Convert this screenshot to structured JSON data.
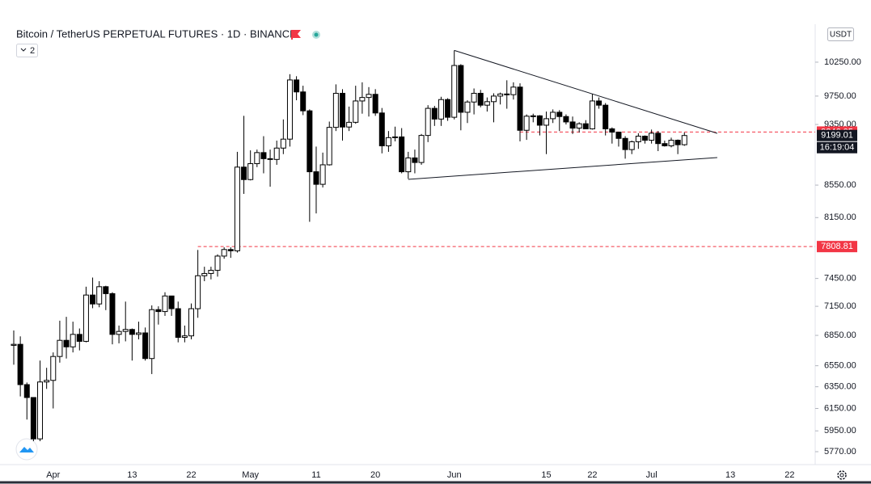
{
  "chart_data": {
    "type": "candlestick",
    "title": "Bitcoin / TetherUS PERPETUAL FUTURES · 1D · BINANCE",
    "indicator_count": 2,
    "currency": "USDT",
    "log_scale": true,
    "up_color": "#ffffff",
    "down_color": "#000000",
    "wick_color": "#000000",
    "categories": [
      null,
      null,
      null,
      null,
      null,
      null,
      "Apr",
      null,
      null,
      null,
      null,
      null,
      null,
      null,
      null,
      null,
      null,
      null,
      "13",
      null,
      null,
      null,
      null,
      null,
      null,
      null,
      null,
      "22",
      null,
      null,
      null,
      null,
      null,
      null,
      null,
      null,
      "May",
      null,
      null,
      null,
      null,
      null,
      null,
      null,
      null,
      null,
      "11",
      null,
      null,
      null,
      null,
      null,
      null,
      null,
      null,
      "20",
      null,
      null,
      null,
      null,
      null,
      null,
      null,
      null,
      null,
      null,
      null,
      "Jun",
      null,
      null,
      null,
      null,
      null,
      null,
      null,
      null,
      null,
      null,
      null,
      null,
      null,
      "15",
      null,
      null,
      null,
      null,
      null,
      null,
      "22",
      null,
      null,
      null,
      null,
      null,
      null,
      null,
      null,
      "Jul",
      null,
      null,
      null,
      null,
      null,
      null,
      null,
      null,
      null,
      null,
      null,
      "13",
      null,
      null,
      null,
      null,
      null,
      null,
      null,
      null,
      "22",
      null,
      null
    ],
    "open": [
      6750,
      6760,
      6370,
      6250,
      5880,
      6395,
      6410,
      6640,
      6800,
      6735,
      6860,
      6790,
      7270,
      7175,
      7360,
      7285,
      6860,
      6890,
      6910,
      6860,
      6875,
      6620,
      7115,
      7095,
      7260,
      7125,
      6830,
      6845,
      7125,
      7480,
      7505,
      7540,
      7700,
      7775,
      7760,
      8780,
      8620,
      8825,
      8970,
      8890,
      8880,
      9030,
      9150,
      9985,
      9810,
      9540,
      8720,
      8560,
      8810,
      9310,
      9790,
      9315,
      9380,
      9680,
      9730,
      9775,
      9510,
      9060,
      9170,
      9180,
      8720,
      8900,
      8840,
      9200,
      9575,
      9425,
      9700,
      9450,
      10200,
      9520,
      9665,
      9790,
      9620,
      9670,
      9750,
      9780,
      9770,
      9880,
      9270,
      9465,
      9470,
      9340,
      9430,
      9520,
      9460,
      9385,
      9300,
      9360,
      9290,
      9680,
      9620,
      9290,
      9245,
      9160,
      9010,
      9115,
      9190,
      9135,
      9230,
      9090,
      9060,
      9135,
      9075,
      null,
      null,
      null,
      null,
      null,
      null,
      null,
      null,
      null,
      null,
      null,
      null,
      null,
      null,
      null,
      null,
      null,
      null
    ],
    "high": [
      6900,
      6840,
      6390,
      6250,
      6600,
      6530,
      6680,
      7000,
      7040,
      6990,
      6920,
      7360,
      7460,
      7420,
      7370,
      7300,
      6950,
      7200,
      6920,
      6990,
      6930,
      7160,
      7150,
      7300,
      7260,
      7200,
      6950,
      7180,
      7770,
      7580,
      7580,
      7720,
      7800,
      7800,
      8980,
      9470,
      9000,
      9010,
      9190,
      9010,
      9130,
      9420,
      10070,
      10040,
      9900,
      9560,
      9050,
      8970,
      9390,
      9920,
      9850,
      9600,
      9900,
      9950,
      9880,
      9850,
      9580,
      9260,
      9320,
      9300,
      8980,
      9010,
      9220,
      9620,
      9610,
      9740,
      9720,
      10430,
      10220,
      9690,
      9860,
      9840,
      9730,
      9790,
      9800,
      9980,
      9950,
      9935,
      9490,
      9500,
      9480,
      9530,
      9560,
      9550,
      9490,
      9460,
      9380,
      9410,
      9780,
      9730,
      9650,
      9310,
      9250,
      9190,
      9130,
      9230,
      9200,
      9280,
      9260,
      9130,
      9170,
      9145,
      9240,
      null,
      null,
      null,
      null,
      null,
      null,
      null,
      null,
      null,
      null,
      null,
      null,
      null,
      null,
      null,
      null,
      null,
      null
    ],
    "low": [
      6560,
      6260,
      6050,
      5860,
      5860,
      6330,
      6150,
      6580,
      6620,
      6680,
      6700,
      6780,
      7130,
      7140,
      7110,
      6760,
      6770,
      6790,
      6600,
      6810,
      6600,
      6470,
      6960,
      7050,
      7050,
      6780,
      6780,
      6810,
      7030,
      7420,
      7440,
      7470,
      7670,
      7680,
      7740,
      8440,
      8610,
      8780,
      8700,
      8530,
      8810,
      8950,
      9050,
      9690,
      9480,
      8100,
      8200,
      8520,
      8800,
      9260,
      9130,
      9260,
      9360,
      9500,
      9460,
      9470,
      8960,
      8980,
      9120,
      8700,
      8630,
      8700,
      8810,
      9110,
      9330,
      9330,
      9400,
      9420,
      9270,
      9370,
      9490,
      9590,
      9530,
      9380,
      9630,
      9570,
      9700,
      9120,
      9140,
      9380,
      9200,
      8950,
      9370,
      9260,
      9350,
      9220,
      9240,
      9290,
      9280,
      9570,
      9200,
      9090,
      9050,
      8890,
      8950,
      9020,
      9090,
      9090,
      8990,
      9050,
      9040,
      8950,
      9060,
      null,
      null,
      null,
      null,
      null,
      null,
      null,
      null,
      null,
      null,
      null,
      null,
      null,
      null,
      null,
      null,
      null,
      null
    ],
    "close": [
      6760,
      6370,
      6250,
      5880,
      6395,
      6410,
      6640,
      6800,
      6735,
      6860,
      6790,
      7270,
      7175,
      7360,
      7285,
      6860,
      6890,
      6910,
      6860,
      6875,
      6620,
      7115,
      7095,
      7260,
      7125,
      6830,
      6845,
      7125,
      7480,
      7505,
      7540,
      7700,
      7775,
      7760,
      8780,
      8620,
      8825,
      8970,
      8890,
      8880,
      9030,
      9150,
      9985,
      9810,
      9540,
      8720,
      8560,
      8810,
      9310,
      9790,
      9315,
      9380,
      9680,
      9730,
      9775,
      9510,
      9060,
      9170,
      9180,
      8720,
      8900,
      8840,
      9200,
      9575,
      9425,
      9700,
      9450,
      10200,
      9520,
      9665,
      9790,
      9620,
      9670,
      9750,
      9780,
      9770,
      9880,
      9270,
      9465,
      9470,
      9340,
      9430,
      9520,
      9460,
      9385,
      9300,
      9360,
      9290,
      9680,
      9620,
      9290,
      9245,
      9160,
      9010,
      9115,
      9190,
      9135,
      9230,
      9090,
      9060,
      9135,
      9075,
      9199,
      null,
      null,
      null,
      null,
      null,
      null,
      null,
      null,
      null,
      null,
      null,
      null,
      null,
      null,
      null,
      null,
      null,
      null
    ],
    "ylim": [
      5661,
      10840
    ],
    "yticks": [
      {
        "value": 10250,
        "label": "10250.00"
      },
      {
        "value": 9750,
        "label": "9750.00"
      },
      {
        "value": 9350,
        "label": "9350.00"
      },
      {
        "value": 8550,
        "label": "8550.00"
      },
      {
        "value": 8150,
        "label": "8150.00"
      },
      {
        "value": 7450,
        "label": "7450.00"
      },
      {
        "value": 7150,
        "label": "7150.00"
      },
      {
        "value": 6850,
        "label": "6850.00"
      },
      {
        "value": 6550,
        "label": "6550.00"
      },
      {
        "value": 6350,
        "label": "6350.00"
      },
      {
        "value": 6150,
        "label": "6150.00"
      },
      {
        "value": 5950,
        "label": "5950.00"
      },
      {
        "value": 5770,
        "label": "5770.00"
      }
    ],
    "trend_lines": [
      [
        {
          "index": 67,
          "price": 10430
        },
        {
          "index": 107,
          "price": 9229
        }
      ],
      [
        {
          "index": 60,
          "price": 8623
        },
        {
          "index": 107,
          "price": 8905
        }
      ]
    ],
    "horizontal_lines": [
      {
        "value": 9246.05,
        "from": 77,
        "color": "#f23645"
      },
      {
        "value": 7808.81,
        "from": 28,
        "color": "#f23645"
      }
    ],
    "last_price": {
      "value": 9199.01,
      "countdown": "16:19:04"
    }
  }
}
